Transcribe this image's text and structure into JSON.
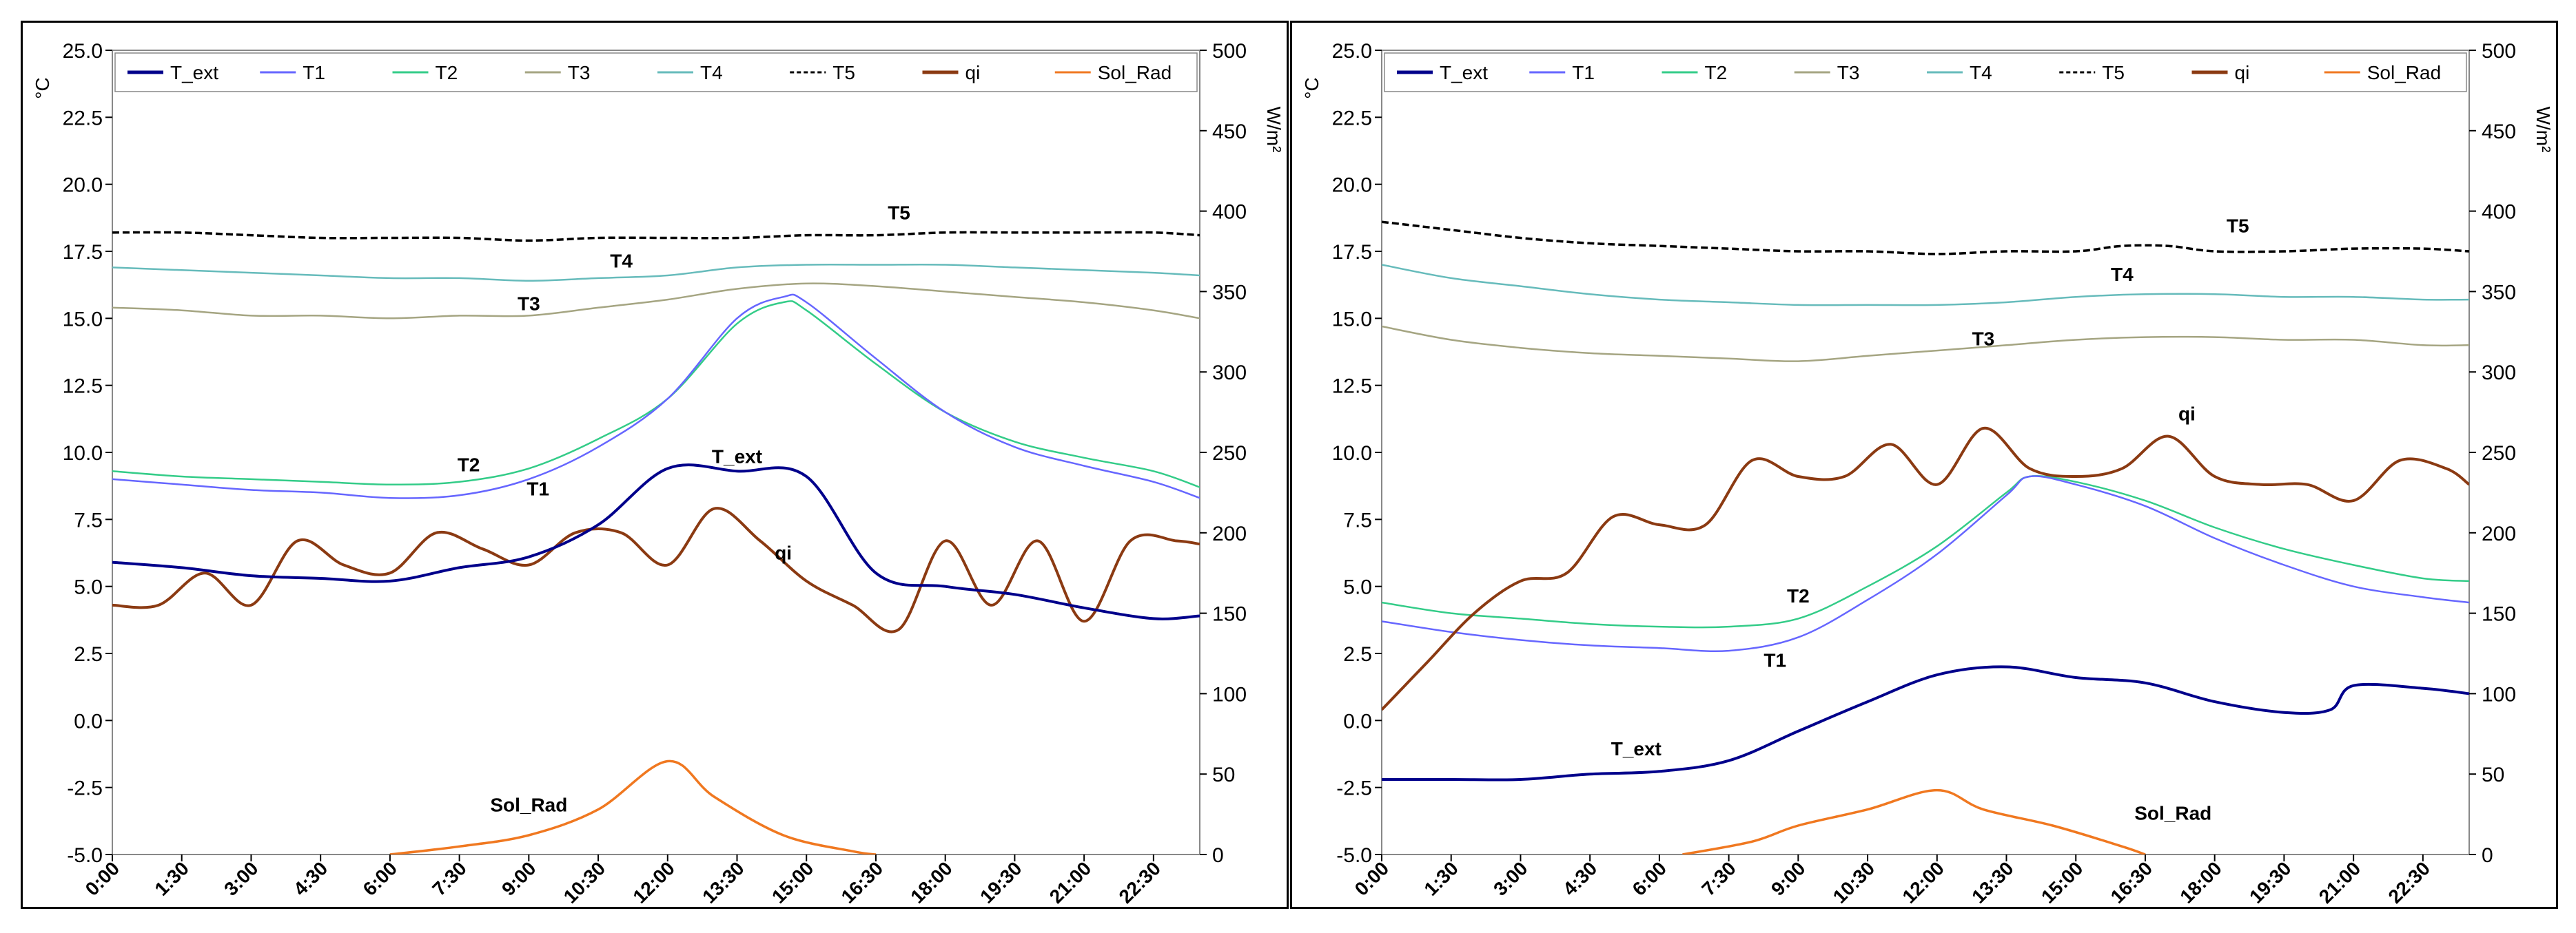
{
  "chart_data": [
    {
      "type": "line",
      "title": "",
      "xlabel": "",
      "ylabel": "°C",
      "y2label": "W/m²",
      "ylim": [
        -5,
        25
      ],
      "y2lim": [
        0,
        500
      ],
      "yticks": [
        "25.0",
        "22.5",
        "20.0",
        "17.5",
        "15.0",
        "12.5",
        "10.0",
        "7.5",
        "5.0",
        "2.5",
        "0.0",
        "-2.5",
        "-5.0"
      ],
      "y2ticks": [
        "500",
        "450",
        "400",
        "350",
        "300",
        "250",
        "200",
        "150",
        "100",
        "50",
        "0"
      ],
      "x_ticks": [
        "0:00",
        "1:30",
        "3:00",
        "4:30",
        "6:00",
        "7:30",
        "9:00",
        "10:30",
        "12:00",
        "13:30",
        "15:00",
        "16:30",
        "18:00",
        "19:30",
        "21:00",
        "22:30"
      ],
      "legend": [
        "T_ext",
        "T1",
        "T2",
        "T3",
        "T4",
        "T5",
        "qi",
        "Sol_Rad"
      ],
      "series": [
        {
          "name": "T_ext",
          "axis": "left",
          "color": "#00008B",
          "x": [
            0,
            1.5,
            3,
            4.5,
            6,
            7.5,
            9,
            10.5,
            12,
            13.5,
            15,
            16.5,
            18,
            19.5,
            21,
            22.5,
            23.5
          ],
          "values": [
            5.9,
            5.7,
            5.4,
            5.3,
            5.2,
            5.7,
            6.1,
            7.3,
            9.4,
            9.3,
            9.1,
            5.5,
            5.0,
            4.7,
            4.2,
            3.8,
            3.9
          ],
          "label": "T_ext",
          "label_at": [
            13.5,
            9.6
          ]
        },
        {
          "name": "T1",
          "axis": "left",
          "color": "#6666FF",
          "x": [
            0,
            1.5,
            3,
            4.5,
            6,
            7.5,
            9,
            10.5,
            12,
            13.5,
            14.5,
            15,
            16.5,
            18,
            19.5,
            21,
            22.5,
            23.5
          ],
          "values": [
            9.0,
            8.8,
            8.6,
            8.5,
            8.3,
            8.4,
            9.0,
            10.2,
            12.0,
            15.0,
            15.8,
            15.6,
            13.5,
            11.5,
            10.2,
            9.5,
            8.9,
            8.3
          ],
          "label": "T1",
          "label_at": [
            9.2,
            8.4
          ]
        },
        {
          "name": "T2",
          "axis": "left",
          "color": "#33CC88",
          "x": [
            0,
            1.5,
            3,
            4.5,
            6,
            7.5,
            9,
            10.5,
            12,
            13.5,
            14.5,
            15,
            16.5,
            18,
            19.5,
            21,
            22.5,
            23.5
          ],
          "values": [
            9.3,
            9.1,
            9.0,
            8.9,
            8.8,
            8.9,
            9.4,
            10.5,
            12.0,
            14.8,
            15.6,
            15.3,
            13.3,
            11.5,
            10.4,
            9.8,
            9.3,
            8.7
          ],
          "label": "T2",
          "label_at": [
            7.7,
            9.3
          ]
        },
        {
          "name": "T3",
          "axis": "left",
          "color": "#A5A582",
          "x": [
            0,
            1.5,
            3,
            4.5,
            6,
            7.5,
            9,
            10.5,
            12,
            13.5,
            15,
            16.5,
            18,
            19.5,
            21,
            22.5,
            23.5
          ],
          "values": [
            15.4,
            15.3,
            15.1,
            15.1,
            15.0,
            15.1,
            15.1,
            15.4,
            15.7,
            16.1,
            16.3,
            16.2,
            16.0,
            15.8,
            15.6,
            15.3,
            15.0
          ],
          "label": "T3",
          "label_at": [
            9.0,
            15.3
          ]
        },
        {
          "name": "T4",
          "axis": "left",
          "color": "#66BBBB",
          "x": [
            0,
            1.5,
            3,
            4.5,
            6,
            7.5,
            9,
            10.5,
            12,
            13.5,
            15,
            16.5,
            18,
            19.5,
            21,
            22.5,
            23.5
          ],
          "values": [
            16.9,
            16.8,
            16.7,
            16.6,
            16.5,
            16.5,
            16.4,
            16.5,
            16.6,
            16.9,
            17.0,
            17.0,
            17.0,
            16.9,
            16.8,
            16.7,
            16.6
          ],
          "label": "T4",
          "label_at": [
            11.0,
            16.9
          ]
        },
        {
          "name": "T5",
          "axis": "left",
          "color": "#000000",
          "dashed": true,
          "x": [
            0,
            1.5,
            3,
            4.5,
            6,
            7.5,
            9,
            10.5,
            12,
            13.5,
            15,
            16.5,
            18,
            19.5,
            21,
            22.5,
            23.5
          ],
          "values": [
            18.2,
            18.2,
            18.1,
            18.0,
            18.0,
            18.0,
            17.9,
            18.0,
            18.0,
            18.0,
            18.1,
            18.1,
            18.2,
            18.2,
            18.2,
            18.2,
            18.1
          ],
          "label": "T5",
          "label_at": [
            17.0,
            18.7
          ]
        },
        {
          "name": "qi",
          "axis": "right",
          "color": "#8B3A12",
          "x": [
            0,
            1,
            2,
            3,
            4,
            5,
            6,
            7,
            8,
            9,
            10,
            11,
            12,
            13,
            14,
            15,
            16,
            17,
            18,
            19,
            20,
            21,
            22,
            23,
            23.5
          ],
          "values": [
            155,
            155,
            175,
            155,
            195,
            180,
            175,
            200,
            190,
            180,
            200,
            200,
            180,
            215,
            195,
            170,
            155,
            140,
            195,
            155,
            195,
            145,
            195,
            195,
            193
          ],
          "label": "qi",
          "label_at": [
            14.5,
            6.0
          ]
        },
        {
          "name": "Sol_Rad",
          "axis": "right",
          "color": "#F07820",
          "x": [
            6,
            7.5,
            9,
            10.5,
            12,
            13,
            14.5,
            16,
            16.5
          ],
          "values": [
            0,
            5,
            12,
            28,
            58,
            36,
            12,
            2,
            0
          ],
          "label": "Sol_Rad",
          "label_at": [
            9.0,
            -3.4
          ]
        }
      ]
    },
    {
      "type": "line",
      "title": "",
      "xlabel": "",
      "ylabel": "°C",
      "y2label": "W/m²",
      "ylim": [
        -5,
        25
      ],
      "y2lim": [
        0,
        500
      ],
      "yticks": [
        "25.0",
        "22.5",
        "20.0",
        "17.5",
        "15.0",
        "12.5",
        "10.0",
        "7.5",
        "5.0",
        "2.5",
        "0.0",
        "-2.5",
        "-5.0"
      ],
      "y2ticks": [
        "500",
        "450",
        "400",
        "350",
        "300",
        "250",
        "200",
        "150",
        "100",
        "50",
        "0"
      ],
      "x_ticks": [
        "0:00",
        "1:30",
        "3:00",
        "4:30",
        "6:00",
        "7:30",
        "9:00",
        "10:30",
        "12:00",
        "13:30",
        "15:00",
        "16:30",
        "18:00",
        "19:30",
        "21:00",
        "22:30"
      ],
      "legend": [
        "T_ext",
        "T1",
        "T2",
        "T3",
        "T4",
        "T5",
        "qi",
        "Sol_Rad"
      ],
      "series": [
        {
          "name": "T_ext",
          "axis": "left",
          "color": "#00008B",
          "x": [
            0,
            1.5,
            3,
            4.5,
            6,
            7.5,
            9,
            10.5,
            12,
            13.5,
            15,
            16.5,
            18,
            19.5,
            20.5,
            21,
            22.5,
            23.5
          ],
          "values": [
            -2.2,
            -2.2,
            -2.2,
            -2.0,
            -1.9,
            -1.5,
            -0.4,
            0.7,
            1.7,
            2.0,
            1.6,
            1.4,
            0.7,
            0.3,
            0.4,
            1.3,
            1.2,
            1.0
          ],
          "label": "T_ext",
          "label_at": [
            5.5,
            -1.3
          ]
        },
        {
          "name": "T1",
          "axis": "left",
          "color": "#6666FF",
          "x": [
            0,
            1.5,
            3,
            4.5,
            6,
            7.5,
            9,
            10.5,
            12,
            13.5,
            14,
            15,
            16.5,
            18,
            19.5,
            21,
            22.5,
            23.5
          ],
          "values": [
            3.7,
            3.3,
            3.0,
            2.8,
            2.7,
            2.6,
            3.1,
            4.5,
            6.2,
            8.4,
            9.1,
            8.8,
            8.0,
            6.8,
            5.8,
            5.0,
            4.6,
            4.4
          ],
          "label": "T1",
          "label_at": [
            8.5,
            2.0
          ]
        },
        {
          "name": "T2",
          "axis": "left",
          "color": "#33CC88",
          "x": [
            0,
            1.5,
            3,
            4.5,
            6,
            7.5,
            9,
            10.5,
            12,
            13.5,
            14,
            15,
            16.5,
            18,
            19.5,
            21,
            22.5,
            23.5
          ],
          "values": [
            4.4,
            4.0,
            3.8,
            3.6,
            3.5,
            3.5,
            3.8,
            5.0,
            6.5,
            8.5,
            9.1,
            8.9,
            8.2,
            7.2,
            6.4,
            5.8,
            5.3,
            5.2
          ],
          "label": "T2",
          "label_at": [
            9.0,
            4.4
          ]
        },
        {
          "name": "T3",
          "axis": "left",
          "color": "#A5A582",
          "x": [
            0,
            1.5,
            3,
            4.5,
            6,
            7.5,
            9,
            10.5,
            12,
            13.5,
            15,
            16.5,
            18,
            19.5,
            21,
            22.5,
            23.5
          ],
          "values": [
            14.7,
            14.2,
            13.9,
            13.7,
            13.6,
            13.5,
            13.4,
            13.6,
            13.8,
            14.0,
            14.2,
            14.3,
            14.3,
            14.2,
            14.2,
            14.0,
            14.0
          ],
          "label": "T3",
          "label_at": [
            13.0,
            14.0
          ]
        },
        {
          "name": "T4",
          "axis": "left",
          "color": "#66BBBB",
          "x": [
            0,
            1.5,
            3,
            4.5,
            6,
            7.5,
            9,
            10.5,
            12,
            13.5,
            15,
            16.5,
            18,
            19.5,
            21,
            22.5,
            23.5
          ],
          "values": [
            17.0,
            16.5,
            16.2,
            15.9,
            15.7,
            15.6,
            15.5,
            15.5,
            15.5,
            15.6,
            15.8,
            15.9,
            15.9,
            15.8,
            15.8,
            15.7,
            15.7
          ],
          "label": "T4",
          "label_at": [
            16.0,
            16.4
          ]
        },
        {
          "name": "T5",
          "axis": "left",
          "color": "#000000",
          "dashed": true,
          "x": [
            0,
            1.5,
            3,
            4.5,
            6,
            7.5,
            9,
            10.5,
            12,
            13.5,
            15,
            16,
            17,
            18,
            19.5,
            21,
            22.5,
            23.5
          ],
          "values": [
            18.6,
            18.3,
            18.0,
            17.8,
            17.7,
            17.6,
            17.5,
            17.5,
            17.4,
            17.5,
            17.5,
            17.7,
            17.7,
            17.5,
            17.5,
            17.6,
            17.6,
            17.5
          ],
          "label": "T5",
          "label_at": [
            18.5,
            18.2
          ]
        },
        {
          "name": "qi",
          "axis": "right",
          "color": "#8B3A12",
          "x": [
            0,
            1,
            2,
            3,
            4,
            5,
            6,
            7,
            8,
            9,
            10,
            11,
            12,
            13,
            14,
            15,
            16,
            17,
            18,
            19,
            20,
            21,
            22,
            23,
            23.5
          ],
          "values": [
            90,
            120,
            150,
            170,
            175,
            210,
            205,
            205,
            245,
            235,
            235,
            255,
            230,
            265,
            240,
            235,
            240,
            260,
            235,
            230,
            230,
            220,
            245,
            240,
            230
          ],
          "label": "qi",
          "label_at": [
            17.4,
            11.2
          ]
        },
        {
          "name": "Sol_Rad",
          "axis": "right",
          "color": "#F07820",
          "x": [
            6.5,
            8,
            9,
            10.5,
            12,
            13,
            14.5,
            16,
            16.5
          ],
          "values": [
            0,
            8,
            18,
            28,
            40,
            28,
            18,
            5,
            0
          ],
          "label": "Sol_Rad",
          "label_at": [
            17.1,
            -3.7
          ]
        }
      ]
    }
  ]
}
